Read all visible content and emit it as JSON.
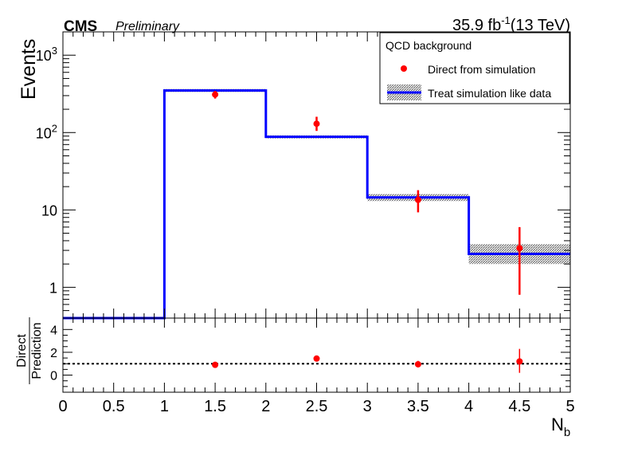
{
  "header": {
    "experiment": "CMS",
    "status": "Preliminary",
    "lumi_value": "35.9 fb",
    "lumi_exp": "-1",
    "energy": "(13 TeV)"
  },
  "legend": {
    "title": "QCD background",
    "entries": [
      "Direct from simulation",
      "Treat simulation like data"
    ]
  },
  "colors": {
    "red": "#ff0000",
    "blue": "#0000ff",
    "band": "#707070",
    "frame": "#000000"
  },
  "chart_data": [
    {
      "type": "line",
      "panel": "main",
      "ylabel": "Events",
      "yscale": "log",
      "ylim": [
        0.4,
        2000
      ],
      "xlim": [
        0,
        5
      ],
      "y_tick_labels": [
        {
          "base": "10",
          "exp": "3",
          "v": 1000
        },
        {
          "base": "10",
          "exp": "2",
          "v": 100
        },
        {
          "base": "10",
          "exp": "",
          "v": 10
        },
        {
          "base": "1",
          "exp": "",
          "v": 1
        }
      ],
      "series": [
        {
          "name": "Treat simulation like data",
          "kind": "histogram",
          "bin_edges": [
            0,
            1,
            2,
            3,
            4,
            5
          ],
          "values": [
            0.4,
            350,
            88,
            14.5,
            2.7
          ],
          "band_low": [
            0.4,
            335,
            84,
            13.0,
            2.0
          ],
          "band_high": [
            0.4,
            365,
            92,
            16.0,
            3.6
          ]
        },
        {
          "name": "Direct from simulation",
          "kind": "points",
          "x": [
            1.5,
            2.5,
            3.5,
            4.5
          ],
          "y": [
            310,
            130,
            13.5,
            3.2
          ],
          "err_low": [
            275,
            105,
            9.3,
            0.8
          ],
          "err_high": [
            345,
            160,
            18.0,
            6.0
          ]
        }
      ]
    },
    {
      "type": "scatter",
      "panel": "ratio",
      "ylabel_top": "Direct",
      "ylabel_bottom": "Prediction",
      "xlabel": "N",
      "xlabel_sub": "b",
      "xlim": [
        0,
        5
      ],
      "ylim": [
        -1.5,
        5
      ],
      "y_ticks": [
        0,
        2,
        4
      ],
      "x_ticks": [
        "0",
        "0.5",
        "1",
        "1.5",
        "2",
        "2.5",
        "3",
        "3.5",
        "4",
        "4.5",
        "5"
      ],
      "reference_line": 1,
      "x": [
        1.5,
        2.5,
        3.5,
        4.5
      ],
      "y": [
        0.9,
        1.45,
        0.95,
        1.2
      ],
      "err_low": [
        0.78,
        1.25,
        0.7,
        0.2
      ],
      "err_high": [
        1.0,
        1.65,
        1.25,
        2.3
      ]
    }
  ]
}
